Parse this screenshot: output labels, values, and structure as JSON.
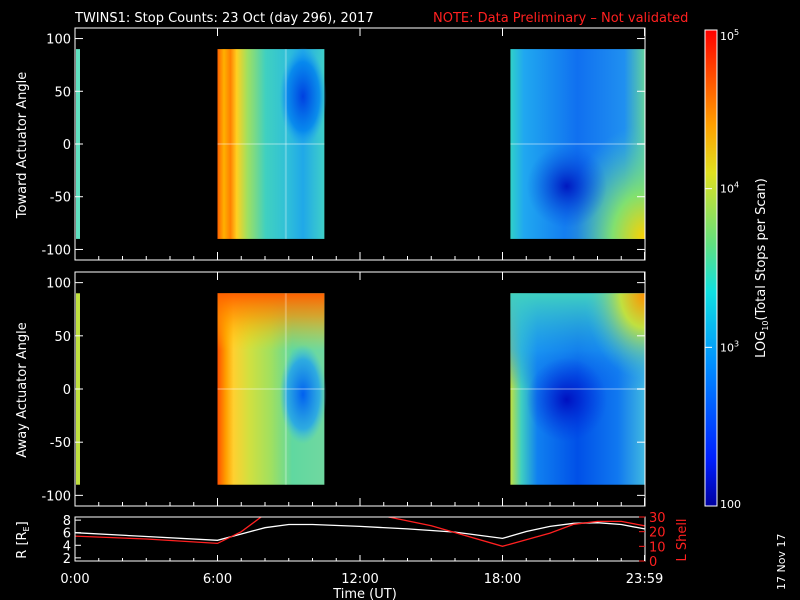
{
  "header": {
    "title": "TWINS1: Stop Counts: 23 Oct (day 296), 2017",
    "note": "NOTE: Data Preliminary – Not validated"
  },
  "colors": {
    "note": "#ff2020",
    "orbit_r": "#ffffff",
    "orbit_l": "#ff2020",
    "background": "#000000"
  },
  "colorbar": {
    "label": "LOG10(Total Stops per Scan)",
    "label_main": "LOG",
    "label_sub": "10",
    "label_rest": "(Total Stops per Scan)",
    "ticks": [
      {
        "base": "10",
        "exp": "5",
        "value": 100000
      },
      {
        "base": "10",
        "exp": "4",
        "value": 10000
      },
      {
        "base": "10",
        "exp": "3",
        "value": 1000
      },
      {
        "base": "100",
        "exp": "",
        "value": 100
      }
    ],
    "range": [
      100,
      100000
    ],
    "scale": "log"
  },
  "footer": {
    "stamp": "17 Nov 17"
  },
  "chart_data": [
    {
      "type": "heatmap",
      "ylabel": "Toward Actuator Angle",
      "ylim": [
        -110,
        110
      ],
      "yticks": [
        "100",
        "50",
        "0",
        "-50",
        "-100"
      ],
      "ytick_values": [
        100,
        50,
        0,
        -50,
        -100
      ],
      "x_range_hours": [
        0,
        24
      ],
      "data_blocks": [
        {
          "start": "06:00",
          "end": "10:30",
          "angle_range": [
            -90,
            90
          ],
          "typical_counts": "1e3-1e5"
        },
        {
          "start": "18:20",
          "end": "23:59",
          "angle_range": [
            -90,
            90
          ],
          "typical_counts": "1e2-1e4"
        }
      ]
    },
    {
      "type": "heatmap",
      "ylabel": "Away Actuator Angle",
      "ylim": [
        -110,
        110
      ],
      "yticks": [
        "100",
        "50",
        "0",
        "-50",
        "-100"
      ],
      "ytick_values": [
        100,
        50,
        0,
        -50,
        -100
      ],
      "x_range_hours": [
        0,
        24
      ],
      "data_blocks": [
        {
          "start": "06:00",
          "end": "10:30",
          "angle_range": [
            -90,
            90
          ],
          "typical_counts": "1e3-1e5"
        },
        {
          "start": "18:20",
          "end": "23:59",
          "angle_range": [
            -90,
            90
          ],
          "typical_counts": "1e2-1e4"
        }
      ]
    },
    {
      "type": "line",
      "xlabel": "Time (UT)",
      "xticks": [
        "0:00",
        "6:00",
        "12:00",
        "18:00",
        "23:59"
      ],
      "xtick_hours": [
        0,
        6,
        12,
        18,
        23.98
      ],
      "ylabel_left": "R [RE]",
      "ylabel_left_main": "R [R",
      "ylabel_left_sub": "E",
      "ylabel_left_end": "]",
      "ylabel_right": "L Shell",
      "yticks_left": [
        "8",
        "6",
        "4",
        "2"
      ],
      "ytick_left_values": [
        8,
        6,
        4,
        2
      ],
      "yticks_right": [
        "30",
        "20",
        "10",
        "0"
      ],
      "ytick_right_values": [
        30,
        20,
        10,
        0
      ],
      "ylim_left": [
        1.5,
        8.5
      ],
      "ylim_right": [
        0,
        30
      ],
      "series": [
        {
          "name": "R [RE]",
          "axis": "left",
          "x": [
            0,
            3,
            6,
            7,
            8,
            9,
            10,
            12,
            14,
            16,
            18,
            19,
            20,
            21,
            22,
            23,
            23.98
          ],
          "y": [
            6.0,
            5.4,
            4.8,
            5.8,
            6.8,
            7.3,
            7.3,
            7.0,
            6.6,
            6.1,
            5.1,
            6.2,
            7.0,
            7.5,
            7.6,
            7.3,
            6.6
          ]
        },
        {
          "name": "L Shell",
          "axis": "right",
          "segments": [
            {
              "x": [
                0,
                3,
                6,
                7,
                8
              ],
              "y": [
                17,
                15,
                12,
                20,
                32
              ]
            },
            {
              "x": [
                12.9,
                15,
                18,
                20,
                21,
                22,
                23,
                23.98
              ],
              "y": [
                31,
                24,
                10,
                19,
                25,
                27,
                27,
                24
              ]
            }
          ]
        }
      ]
    }
  ]
}
